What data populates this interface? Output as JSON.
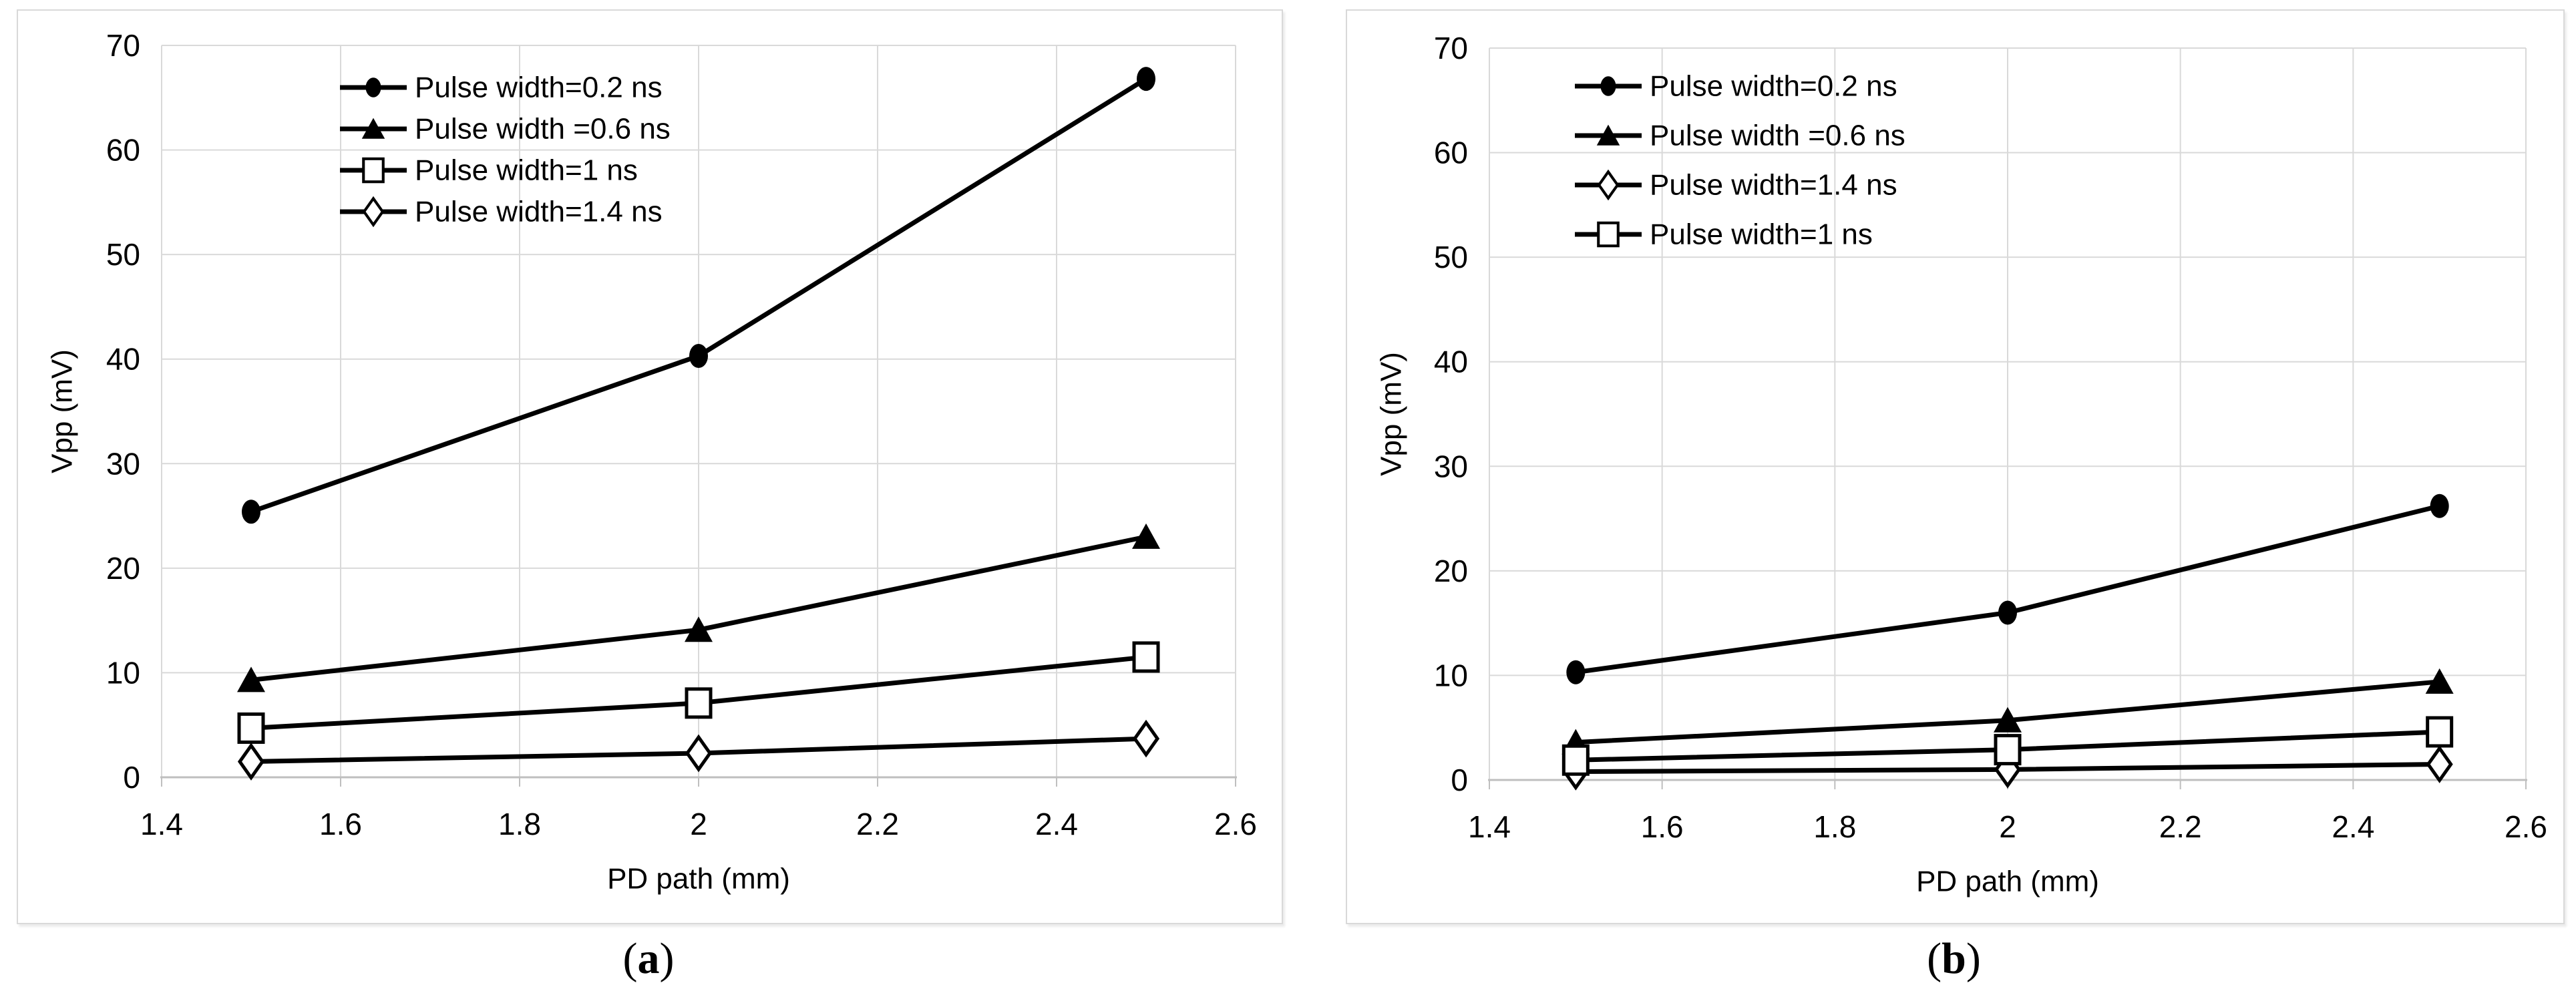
{
  "figure": {
    "background": "#ffffff",
    "panel_border_color": "#d9d9d9",
    "series_color": "#000000",
    "gridline_color": "#d9d9d9",
    "axis_line_color": "#bfbfbf",
    "text_color": "#000000",
    "captions": {
      "a": {
        "open": "(",
        "letter": "a",
        "close": ")"
      },
      "b": {
        "open": "(",
        "letter": "b",
        "close": ")"
      }
    }
  },
  "chart_data": [
    {
      "id": "a",
      "type": "line",
      "title": "",
      "xlabel": "PD path (mm)",
      "ylabel": "Vpp (mV)",
      "xlim": [
        1.4,
        2.6
      ],
      "ylim": [
        0,
        70
      ],
      "xticks": [
        1.4,
        1.6,
        1.8,
        2,
        2.2,
        2.4,
        2.6
      ],
      "xtick_labels": [
        "1.4",
        "1.6",
        "1.8",
        "2",
        "2.2",
        "2.4",
        "2.6"
      ],
      "yticks": [
        0,
        10,
        20,
        30,
        40,
        50,
        60,
        70
      ],
      "grid": true,
      "legend_position": "inside-top-left",
      "x": [
        1.5,
        2,
        2.5
      ],
      "series": [
        {
          "name": "Pulse width=0.2 ns",
          "marker": "filled-circle",
          "values": [
            25.4,
            40.3,
            66.8
          ]
        },
        {
          "name": "Pulse width =0.6 ns",
          "marker": "filled-triangle",
          "values": [
            9.3,
            14.1,
            23.0
          ]
        },
        {
          "name": "Pulse width=1 ns",
          "marker": "open-square",
          "values": [
            4.7,
            7.1,
            11.5
          ]
        },
        {
          "name": "Pulse width=1.4 ns",
          "marker": "open-diamond",
          "values": [
            1.5,
            2.3,
            3.7
          ]
        }
      ]
    },
    {
      "id": "b",
      "type": "line",
      "title": "",
      "xlabel": "PD path (mm)",
      "ylabel": "Vpp (mV)",
      "xlim": [
        1.4,
        2.6
      ],
      "ylim": [
        0,
        70
      ],
      "xticks": [
        1.4,
        1.6,
        1.8,
        2,
        2.2,
        2.4,
        2.6
      ],
      "xtick_labels": [
        "1.4",
        "1.6",
        "1.8",
        "2",
        "2.2",
        "2.4",
        "2.6"
      ],
      "yticks": [
        0,
        10,
        20,
        30,
        40,
        50,
        60,
        70
      ],
      "grid": true,
      "legend_position": "inside-top-left",
      "x": [
        1.5,
        2,
        2.5
      ],
      "series": [
        {
          "name": "Pulse width=0.2 ns",
          "marker": "filled-circle",
          "values": [
            10.3,
            16.0,
            26.2
          ]
        },
        {
          "name": "Pulse width =0.6 ns",
          "marker": "filled-triangle",
          "values": [
            3.6,
            5.7,
            9.4
          ]
        },
        {
          "name": "Pulse width=1.4 ns",
          "marker": "open-diamond",
          "values": [
            0.8,
            1.0,
            1.5
          ]
        },
        {
          "name": "Pulse width=1 ns",
          "marker": "open-square",
          "values": [
            1.9,
            2.9,
            4.6
          ]
        }
      ]
    }
  ]
}
